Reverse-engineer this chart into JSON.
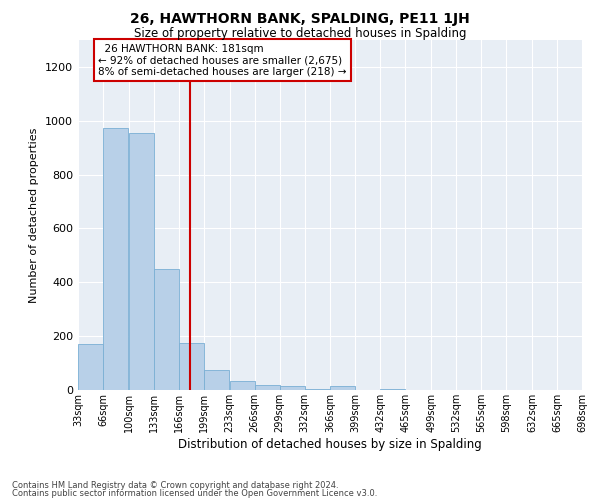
{
  "title": "26, HAWTHORN BANK, SPALDING, PE11 1JH",
  "subtitle": "Size of property relative to detached houses in Spalding",
  "xlabel": "Distribution of detached houses by size in Spalding",
  "ylabel": "Number of detached properties",
  "annotation_line1": "  26 HAWTHORN BANK: 181sqm",
  "annotation_line2": "← 92% of detached houses are smaller (2,675)",
  "annotation_line3": "8% of semi-detached houses are larger (218) →",
  "property_size_bin": 4,
  "vline_color": "#cc0000",
  "bar_color": "#b8d0e8",
  "bar_edge_color": "#7aafd4",
  "background_color": "#e8eef5",
  "footer_line1": "Contains HM Land Registry data © Crown copyright and database right 2024.",
  "footer_line2": "Contains public sector information licensed under the Open Government Licence v3.0.",
  "bin_edges": [
    33,
    66,
    100,
    133,
    166,
    199,
    233,
    266,
    299,
    332,
    366,
    399,
    432,
    465,
    499,
    532,
    565,
    598,
    632,
    665,
    698
  ],
  "bin_labels": [
    "33sqm",
    "66sqm",
    "100sqm",
    "133sqm",
    "166sqm",
    "199sqm",
    "233sqm",
    "266sqm",
    "299sqm",
    "332sqm",
    "366sqm",
    "399sqm",
    "432sqm",
    "465sqm",
    "499sqm",
    "532sqm",
    "565sqm",
    "598sqm",
    "632sqm",
    "665sqm",
    "698sqm"
  ],
  "counts": [
    170,
    975,
    955,
    450,
    175,
    75,
    35,
    20,
    15,
    5,
    15,
    0,
    5,
    0,
    0,
    0,
    0,
    0,
    0,
    0
  ],
  "vline_x": 181,
  "ylim": [
    0,
    1300
  ],
  "yticks": [
    0,
    200,
    400,
    600,
    800,
    1000,
    1200
  ]
}
